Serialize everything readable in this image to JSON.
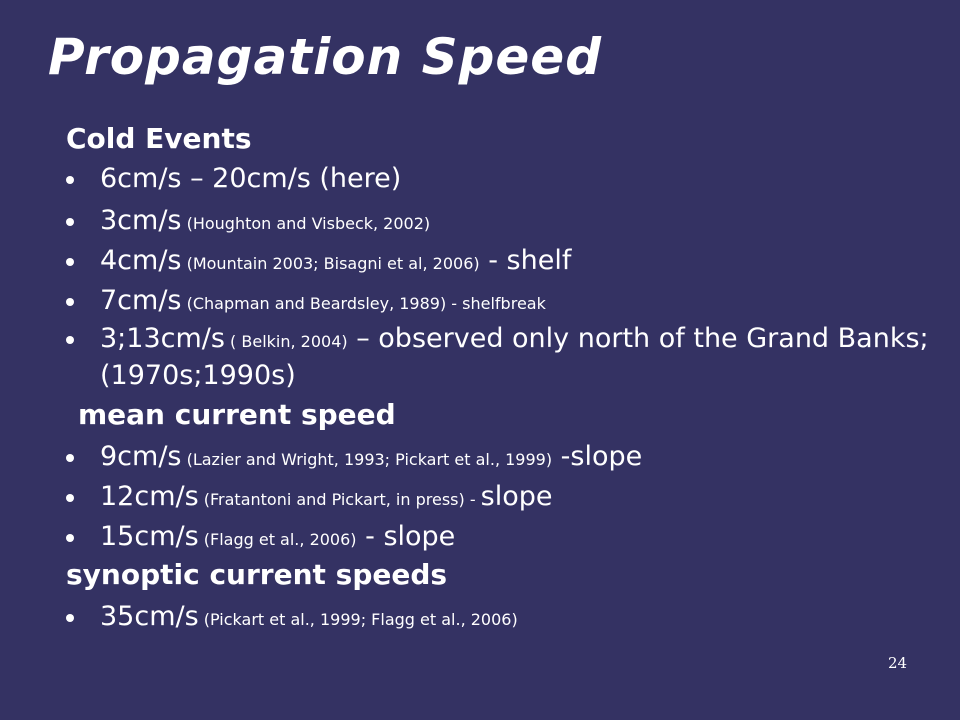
{
  "title": "Propagation Speed",
  "sections": [
    {
      "heading": "Cold Events",
      "bullets": [
        {
          "main": "6cm/s – 20cm/s (here)",
          "ref": "",
          "tail": ""
        },
        {
          "main": "3cm/s",
          "ref": " (Houghton and Visbeck, 2002)",
          "tail": ""
        },
        {
          "main": "4cm/s",
          "ref": " (Mountain 2003; Bisagni et al, 2006)",
          "tail": " - shelf"
        },
        {
          "main": "7cm/s",
          "ref": " (Chapman and Beardsley, 1989) - shelfbreak",
          "tail": ""
        },
        {
          "main": "3;13cm/s",
          "ref": " ( Belkin, 2004)",
          "tail": "  – observed only north of the Grand Banks; (1970s;1990s)"
        }
      ]
    },
    {
      "heading": "mean current speed",
      "bullets": [
        {
          "main": "9cm/s",
          "ref": " (Lazier and Wright, 1993; Pickart et al., 1999)",
          "tail": " -slope"
        },
        {
          "main": "12cm/s",
          "ref": " (Fratantoni and Pickart, in press) - ",
          "tail": "slope"
        },
        {
          "main": "15cm/s",
          "ref": " (Flagg et al., 2006)",
          "tail": " - slope"
        }
      ]
    },
    {
      "heading": "synoptic current speeds",
      "bullets": [
        {
          "main": "35cm/s",
          "ref": " (Pickart et al., 1999; Flagg et al., 2006)",
          "tail": ""
        }
      ]
    }
  ],
  "page_number": "24"
}
